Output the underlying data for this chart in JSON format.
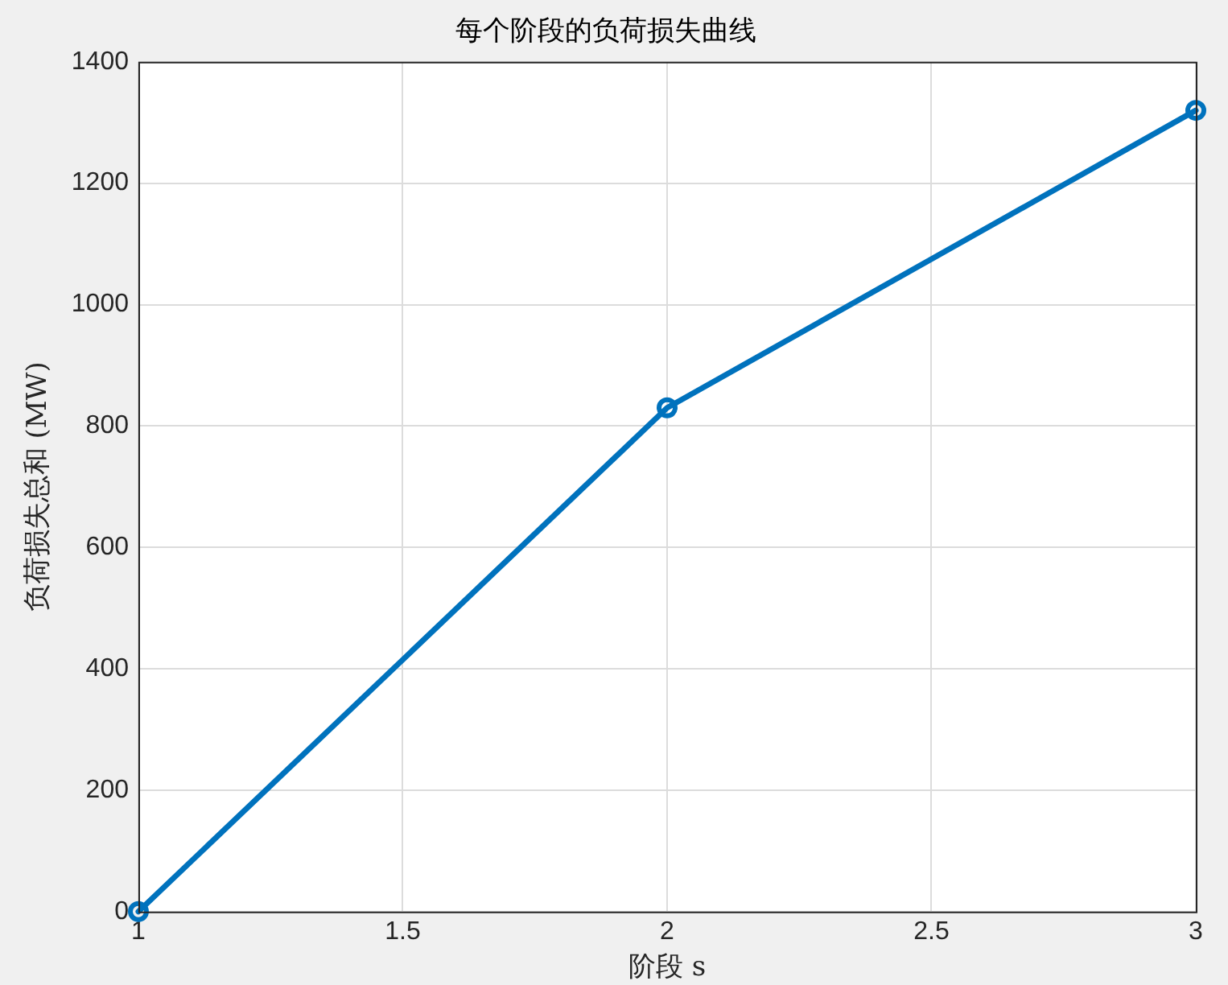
{
  "chart_data": {
    "type": "line",
    "title": "每个阶段的负荷损失曲线",
    "xlabel": "阶段 s",
    "ylabel": "负荷损失总和 (MW)",
    "x": [
      1,
      2,
      3
    ],
    "series": [
      {
        "color": "#0072bd",
        "values": [
          0,
          830,
          1320
        ]
      }
    ],
    "xlim": [
      1,
      3
    ],
    "xticks": [
      1,
      1.5,
      2,
      2.5,
      3
    ],
    "ylim": [
      0,
      1400
    ],
    "yticks": [
      0,
      200,
      400,
      600,
      800,
      1000,
      1200,
      1400
    ],
    "grid": true,
    "legend": false,
    "marker": "circle",
    "line_style": "solid"
  }
}
